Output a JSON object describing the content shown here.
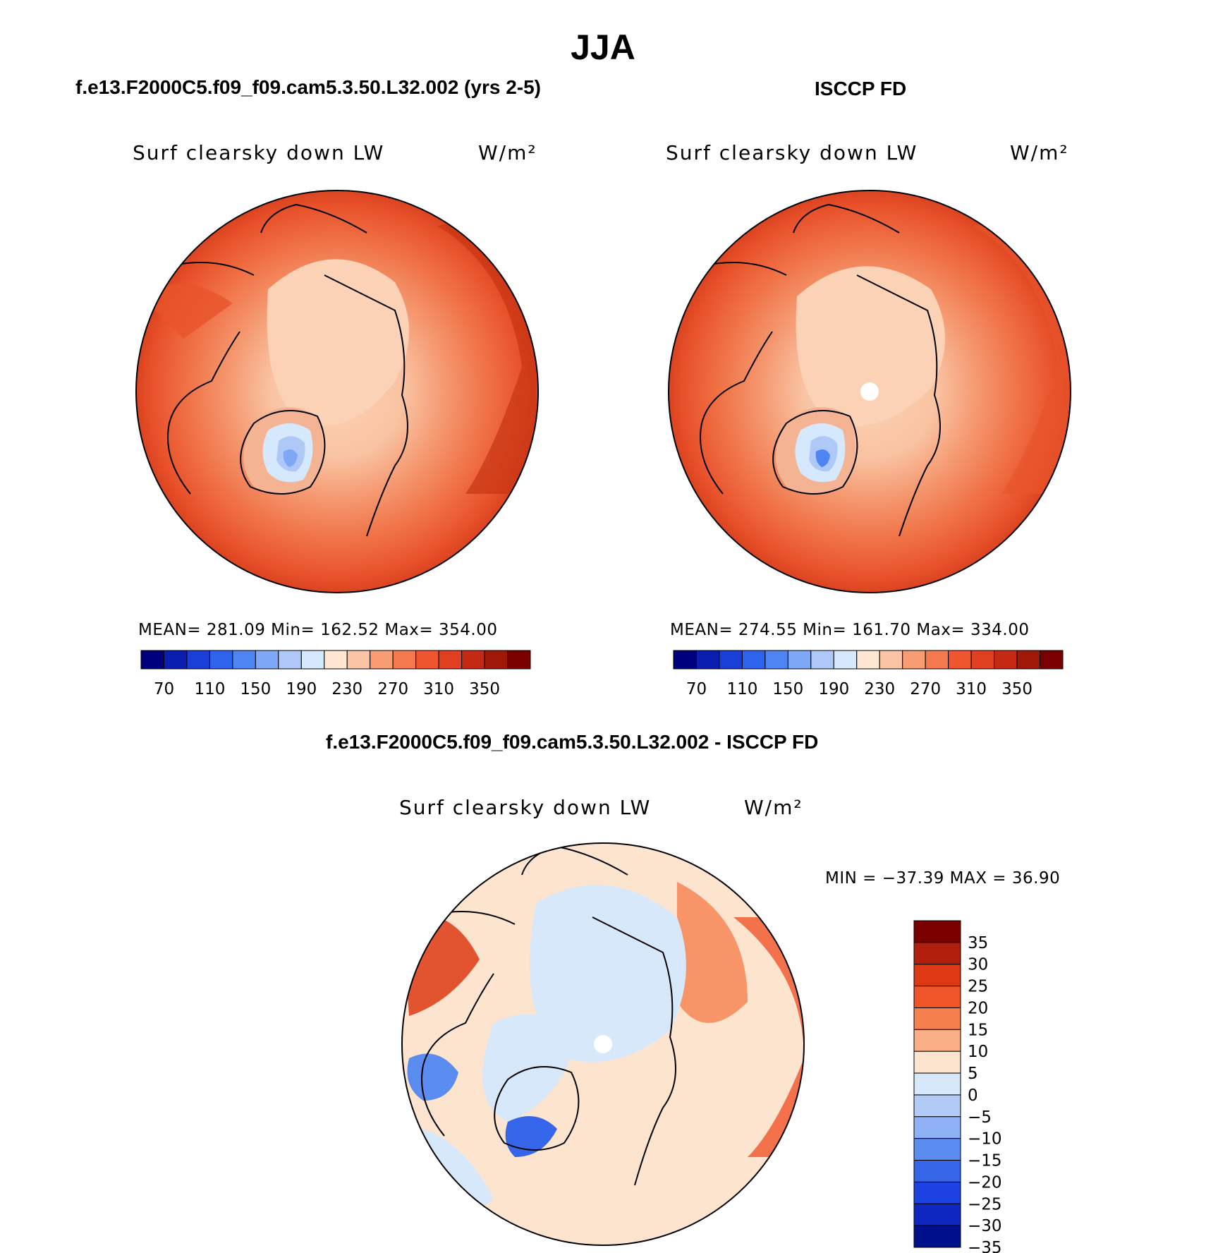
{
  "figure": {
    "season": "JJA",
    "panels": [
      {
        "title": "f.e13.F2000C5.f09_f09.cam5.3.50.L32.002 (yrs 2-5)",
        "variable": "Surf clearsky down LW",
        "units": "W/m²",
        "stats": "MEAN= 281.09   Min= 162.52   Max= 354.00"
      },
      {
        "title": "ISCCP FD",
        "variable": "Surf clearsky down LW",
        "units": "W/m²",
        "stats": "MEAN= 274.55   Min= 161.70   Max= 334.00"
      },
      {
        "title": "f.e13.F2000C5.f09_f09.cam5.3.50.L32.002 - ISCCP FD",
        "variable": "Surf clearsky down LW",
        "units": "W/m²",
        "stats": "MIN = −37.39  MAX =   36.90"
      }
    ],
    "abs_colorbar": {
      "colors": [
        "#00007f",
        "#0a1fb0",
        "#1a3fd8",
        "#2e63ee",
        "#4f85f2",
        "#7ea8f5",
        "#aec9f7",
        "#d6e8fb",
        "#fde6d2",
        "#fbc4a6",
        "#f79c73",
        "#f4794e",
        "#ef5630",
        "#e04020",
        "#c42a13",
        "#a01808",
        "#7a0000"
      ],
      "tick_labels": [
        "70",
        "110",
        "150",
        "190",
        "230",
        "270",
        "310",
        "350"
      ]
    },
    "diff_colorbar": {
      "colors": [
        "#7a0000",
        "#b2200d",
        "#dd3a14",
        "#f0552a",
        "#f5804e",
        "#f9ae85",
        "#fde4cf",
        "#d8e8fb",
        "#b1cbf6",
        "#8fb1f5",
        "#5b8cf0",
        "#3566ea",
        "#1c42e3",
        "#0d28c0",
        "#00108a"
      ],
      "tick_labels": [
        "35",
        "30",
        "25",
        "20",
        "15",
        "10",
        "5",
        "0",
        "−5",
        "−10",
        "−15",
        "−20",
        "−25",
        "−30",
        "−35"
      ]
    }
  }
}
